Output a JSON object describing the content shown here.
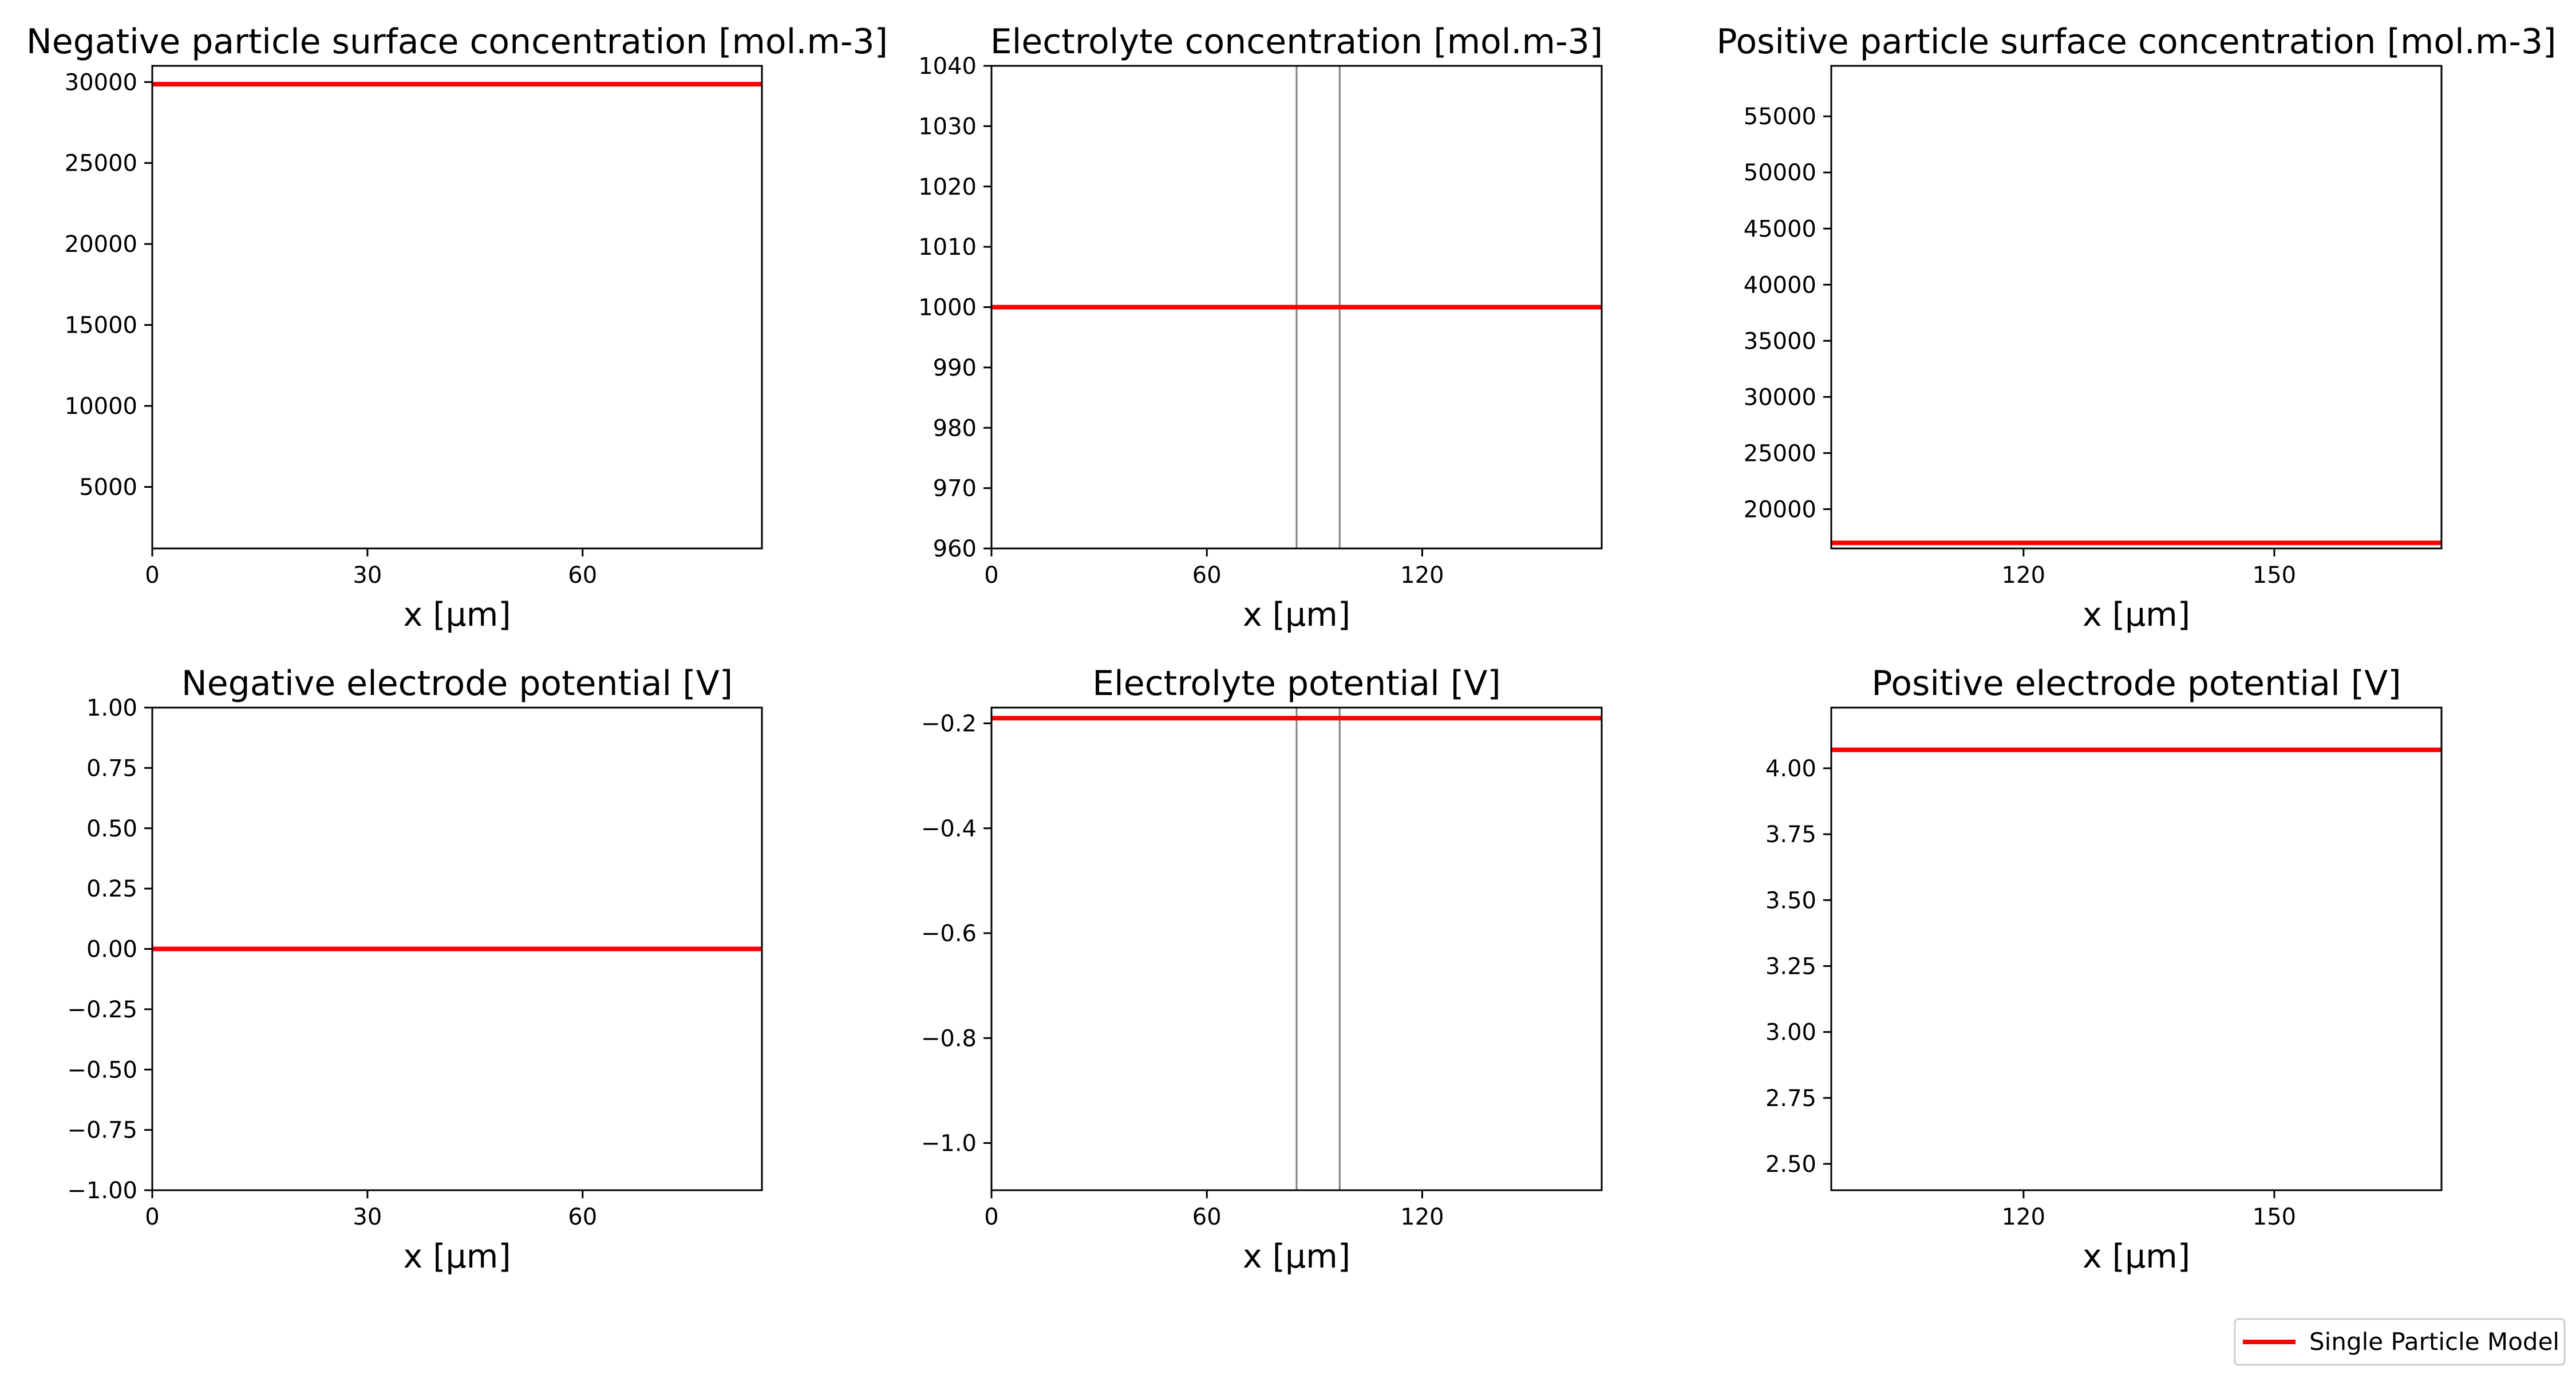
{
  "chart_data": [
    {
      "type": "line",
      "title": "Negative particle surface concentration [mol.m-3]",
      "xlabel": "x [μm]",
      "xlim": [
        0,
        85
      ],
      "ylim": [
        1200,
        31000
      ],
      "xticks": [
        0,
        30,
        60
      ],
      "xtick_labels": [
        "0",
        "30",
        "60"
      ],
      "yticks": [
        5000,
        10000,
        15000,
        20000,
        25000,
        30000
      ],
      "ytick_labels": [
        "5000",
        "10000",
        "15000",
        "20000",
        "25000",
        "30000"
      ],
      "separators": [],
      "series": [
        {
          "name": "Single Particle Model",
          "x": [
            0,
            85
          ],
          "y": [
            29866,
            29866
          ]
        }
      ]
    },
    {
      "type": "line",
      "title": "Electrolyte concentration [mol.m-3]",
      "xlabel": "x [μm]",
      "xlim": [
        0,
        170
      ],
      "ylim": [
        960,
        1040
      ],
      "xticks": [
        0,
        60,
        120
      ],
      "xtick_labels": [
        "0",
        "60",
        "120"
      ],
      "yticks": [
        960,
        970,
        980,
        990,
        1000,
        1010,
        1020,
        1030,
        1040
      ],
      "ytick_labels": [
        "960",
        "970",
        "980",
        "990",
        "1000",
        "1010",
        "1020",
        "1030",
        "1040"
      ],
      "separators": [
        85,
        97
      ],
      "series": [
        {
          "name": "Single Particle Model",
          "x": [
            0,
            170
          ],
          "y": [
            1000,
            1000
          ]
        }
      ]
    },
    {
      "type": "line",
      "title": "Positive particle surface concentration [mol.m-3]",
      "xlabel": "x [μm]",
      "xlim": [
        97,
        170
      ],
      "ylim": [
        16500,
        59500
      ],
      "xticks": [
        120,
        150
      ],
      "xtick_labels": [
        "120",
        "150"
      ],
      "yticks": [
        20000,
        25000,
        30000,
        35000,
        40000,
        45000,
        50000,
        55000
      ],
      "ytick_labels": [
        "20000",
        "25000",
        "30000",
        "35000",
        "40000",
        "45000",
        "50000",
        "55000"
      ],
      "separators": [],
      "series": [
        {
          "name": "Single Particle Model",
          "x": [
            97,
            170
          ],
          "y": [
            17000,
            17000
          ]
        }
      ]
    },
    {
      "type": "line",
      "title": "Negative electrode potential [V]",
      "xlabel": "x [μm]",
      "xlim": [
        0,
        85
      ],
      "ylim": [
        -1.0,
        1.0
      ],
      "xticks": [
        0,
        30,
        60
      ],
      "xtick_labels": [
        "0",
        "30",
        "60"
      ],
      "yticks": [
        -1.0,
        -0.75,
        -0.5,
        -0.25,
        0.0,
        0.25,
        0.5,
        0.75,
        1.0
      ],
      "ytick_labels": [
        "−1.00",
        "−0.75",
        "−0.50",
        "−0.25",
        "0.00",
        "0.25",
        "0.50",
        "0.75",
        "1.00"
      ],
      "separators": [],
      "series": [
        {
          "name": "Single Particle Model",
          "x": [
            0,
            85
          ],
          "y": [
            0.0,
            0.0
          ]
        }
      ]
    },
    {
      "type": "line",
      "title": "Electrolyte potential [V]",
      "xlabel": "x [μm]",
      "xlim": [
        0,
        170
      ],
      "ylim": [
        -1.09,
        -0.17
      ],
      "xticks": [
        0,
        60,
        120
      ],
      "xtick_labels": [
        "0",
        "60",
        "120"
      ],
      "yticks": [
        -1.0,
        -0.8,
        -0.6,
        -0.4,
        -0.2
      ],
      "ytick_labels": [
        "−1.0",
        "−0.8",
        "−0.6",
        "−0.4",
        "−0.2"
      ],
      "separators": [
        85,
        97
      ],
      "series": [
        {
          "name": "Single Particle Model",
          "x": [
            0,
            170
          ],
          "y": [
            -0.19,
            -0.19
          ]
        }
      ]
    },
    {
      "type": "line",
      "title": "Positive electrode potential [V]",
      "xlabel": "x [μm]",
      "xlim": [
        97,
        170
      ],
      "ylim": [
        2.4,
        4.23
      ],
      "xticks": [
        120,
        150
      ],
      "xtick_labels": [
        "120",
        "150"
      ],
      "yticks": [
        2.5,
        2.75,
        3.0,
        3.25,
        3.5,
        3.75,
        4.0
      ],
      "ytick_labels": [
        "2.50",
        "2.75",
        "3.00",
        "3.25",
        "3.50",
        "3.75",
        "4.00"
      ],
      "separators": [],
      "series": [
        {
          "name": "Single Particle Model",
          "x": [
            97,
            170
          ],
          "y": [
            4.07,
            4.07
          ]
        }
      ]
    }
  ],
  "legend": {
    "label": "Single Particle Model",
    "placement": "bottom-right"
  },
  "colors": {
    "series": "#ff0000",
    "separator": "#808080",
    "axes": "#000000"
  }
}
